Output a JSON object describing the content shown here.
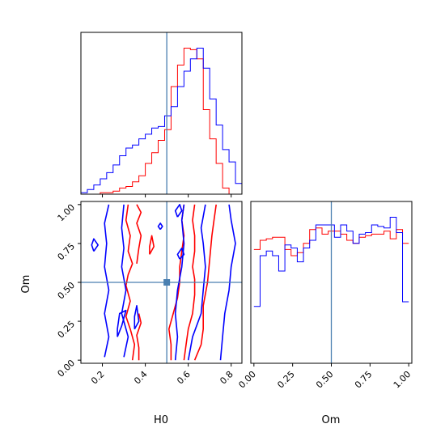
{
  "chart_data": {
    "type": "corner",
    "parameters": [
      "H0",
      "Om"
    ],
    "truth": {
      "H0": 0.5,
      "Om": 0.5
    },
    "colors": {
      "series_a": "#ff0000",
      "series_b": "#0000ff",
      "truth": "#4a7fb0"
    },
    "panels": [
      {
        "id": "H0-marginal",
        "type": "histogram",
        "xlim": [
          0.1,
          0.85
        ],
        "xticks": [
          0.2,
          0.4,
          0.6,
          0.8
        ],
        "bin_edges": [
          0.1,
          0.13,
          0.16,
          0.19,
          0.22,
          0.25,
          0.28,
          0.31,
          0.34,
          0.37,
          0.4,
          0.43,
          0.46,
          0.49,
          0.52,
          0.55,
          0.58,
          0.61,
          0.64,
          0.67,
          0.7,
          0.73,
          0.76,
          0.79,
          0.82,
          0.85
        ],
        "series": [
          {
            "color": "#ff0000",
            "values": [
              0,
              0,
              0,
              0.01,
              0.01,
              0.02,
              0.04,
              0.05,
              0.08,
              0.12,
              0.2,
              0.27,
              0.35,
              0.42,
              0.7,
              0.84,
              0.95,
              0.94,
              0.88,
              0.55,
              0.36,
              0.2,
              0.04,
              0,
              0
            ]
          },
          {
            "color": "#0000ff",
            "values": [
              0.01,
              0.03,
              0.06,
              0.1,
              0.14,
              0.19,
              0.25,
              0.3,
              0.32,
              0.36,
              0.39,
              0.43,
              0.44,
              0.51,
              0.57,
              0.7,
              0.8,
              0.88,
              0.95,
              0.82,
              0.62,
              0.45,
              0.29,
              0.21,
              0.07
            ]
          }
        ]
      },
      {
        "id": "Om-marginal",
        "type": "histogram",
        "xlim": [
          -0.02,
          1.02
        ],
        "xticks": [
          0.0,
          0.25,
          0.5,
          0.75,
          1.0
        ],
        "xticklabels": [
          "0.00",
          "0.25",
          "0.50",
          "0.75",
          "1.00"
        ],
        "bin_edges": [
          0.0,
          0.04,
          0.08,
          0.12,
          0.16,
          0.2,
          0.24,
          0.28,
          0.32,
          0.36,
          0.4,
          0.44,
          0.48,
          0.52,
          0.56,
          0.6,
          0.64,
          0.68,
          0.72,
          0.76,
          0.8,
          0.84,
          0.88,
          0.92,
          0.96,
          1.0
        ],
        "series": [
          {
            "color": "#ff0000",
            "values": [
              0.74,
              0.8,
              0.81,
              0.82,
              0.82,
              0.74,
              0.7,
              0.72,
              0.78,
              0.87,
              0.88,
              0.84,
              0.86,
              0.86,
              0.84,
              0.8,
              0.78,
              0.82,
              0.83,
              0.84,
              0.84,
              0.86,
              0.81,
              0.87,
              0.78
            ]
          },
          {
            "color": "#0000ff",
            "values": [
              0.37,
              0.7,
              0.73,
              0.7,
              0.6,
              0.77,
              0.75,
              0.66,
              0.75,
              0.8,
              0.9,
              0.9,
              0.9,
              0.82,
              0.9,
              0.86,
              0.78,
              0.84,
              0.85,
              0.9,
              0.89,
              0.88,
              0.95,
              0.85,
              0.4
            ]
          }
        ]
      },
      {
        "id": "H0-Om-joint",
        "type": "contour",
        "xlim": [
          0.1,
          0.85
        ],
        "ylim": [
          -0.02,
          1.02
        ],
        "xticks": [
          0.2,
          0.4,
          0.6,
          0.8
        ],
        "yticks": [
          0.0,
          0.25,
          0.5,
          0.75,
          1.0
        ],
        "yticklabels": [
          "0.00",
          "0.25",
          "0.50",
          "0.75",
          "1.00"
        ],
        "series": [
          {
            "color": "#ff0000",
            "contours": [
              [
                [
                  0.34,
                  0.0
                ],
                [
                  0.35,
                  0.1
                ],
                [
                  0.33,
                  0.2
                ],
                [
                  0.31,
                  0.28
                ],
                [
                  0.33,
                  0.38
                ],
                [
                  0.31,
                  0.48
                ],
                [
                  0.32,
                  0.55
                ],
                [
                  0.34,
                  0.62
                ],
                [
                  0.32,
                  0.7
                ],
                [
                  0.33,
                  0.8
                ],
                [
                  0.31,
                  0.9
                ],
                [
                  0.32,
                  1.0
                ]
              ],
              [
                [
                  0.37,
                  0.0
                ],
                [
                  0.37,
                  0.08
                ],
                [
                  0.36,
                  0.16
                ],
                [
                  0.38,
                  0.24
                ],
                [
                  0.37,
                  0.3
                ]
              ],
              [
                [
                  0.36,
                  0.62
                ],
                [
                  0.37,
                  0.72
                ],
                [
                  0.38,
                  0.8
                ],
                [
                  0.36,
                  0.88
                ],
                [
                  0.38,
                  0.95
                ],
                [
                  0.36,
                  1.0
                ]
              ],
              [
                [
                  0.52,
                  0.0
                ],
                [
                  0.52,
                  0.1
                ],
                [
                  0.51,
                  0.2
                ],
                [
                  0.53,
                  0.3
                ],
                [
                  0.55,
                  0.4
                ],
                [
                  0.56,
                  0.5
                ],
                [
                  0.56,
                  0.6
                ],
                [
                  0.57,
                  0.7
                ],
                [
                  0.58,
                  0.8
                ],
                [
                  0.57,
                  0.9
                ],
                [
                  0.58,
                  1.0
                ]
              ],
              [
                [
                  0.58,
                  0.0
                ],
                [
                  0.59,
                  0.1
                ],
                [
                  0.6,
                  0.2
                ],
                [
                  0.62,
                  0.3
                ],
                [
                  0.63,
                  0.42
                ],
                [
                  0.63,
                  0.52
                ],
                [
                  0.62,
                  0.6
                ],
                [
                  0.63,
                  0.7
                ],
                [
                  0.63,
                  0.8
                ],
                [
                  0.62,
                  0.9
                ],
                [
                  0.63,
                  1.0
                ]
              ],
              [
                [
                  0.63,
                  0.0
                ],
                [
                  0.66,
                  0.1
                ],
                [
                  0.67,
                  0.2
                ],
                [
                  0.67,
                  0.35
                ],
                [
                  0.69,
                  0.5
                ],
                [
                  0.7,
                  0.65
                ],
                [
                  0.71,
                  0.8
                ],
                [
                  0.72,
                  0.9
                ],
                [
                  0.73,
                  1.0
                ]
              ],
              [
                [
                  0.42,
                  0.68
                ],
                [
                  0.44,
                  0.73
                ],
                [
                  0.43,
                  0.8
                ],
                [
                  0.42,
                  0.73
                ],
                [
                  0.42,
                  0.68
                ]
              ]
            ]
          },
          {
            "color": "#0000ff",
            "contours": [
              [
                [
                  0.21,
                  0.02
                ],
                [
                  0.23,
                  0.15
                ],
                [
                  0.21,
                  0.3
                ],
                [
                  0.23,
                  0.45
                ],
                [
                  0.21,
                  0.6
                ],
                [
                  0.22,
                  0.75
                ],
                [
                  0.21,
                  0.88
                ],
                [
                  0.23,
                  1.0
                ]
              ],
              [
                [
                  0.3,
                  0.02
                ],
                [
                  0.32,
                  0.15
                ],
                [
                  0.29,
                  0.3
                ],
                [
                  0.31,
                  0.45
                ],
                [
                  0.29,
                  0.6
                ],
                [
                  0.3,
                  0.72
                ],
                [
                  0.29,
                  0.85
                ],
                [
                  0.3,
                  1.0
                ]
              ],
              [
                [
                  0.27,
                  0.15
                ],
                [
                  0.29,
                  0.22
                ],
                [
                  0.31,
                  0.32
                ],
                [
                  0.28,
                  0.3
                ],
                [
                  0.27,
                  0.2
                ],
                [
                  0.27,
                  0.15
                ]
              ],
              [
                [
                  0.35,
                  0.2
                ],
                [
                  0.37,
                  0.25
                ],
                [
                  0.36,
                  0.35
                ],
                [
                  0.35,
                  0.28
                ],
                [
                  0.35,
                  0.2
                ]
              ],
              [
                [
                  0.16,
                  0.7
                ],
                [
                  0.18,
                  0.74
                ],
                [
                  0.16,
                  0.78
                ],
                [
                  0.15,
                  0.74
                ],
                [
                  0.16,
                  0.7
                ]
              ],
              [
                [
                  0.54,
                  0.0
                ],
                [
                  0.55,
                  0.15
                ],
                [
                  0.54,
                  0.3
                ],
                [
                  0.55,
                  0.45
                ],
                [
                  0.57,
                  0.6
                ],
                [
                  0.58,
                  0.75
                ],
                [
                  0.57,
                  0.9
                ],
                [
                  0.58,
                  1.0
                ]
              ],
              [
                [
                  0.6,
                  0.0
                ],
                [
                  0.62,
                  0.15
                ],
                [
                  0.66,
                  0.3
                ],
                [
                  0.67,
                  0.45
                ],
                [
                  0.68,
                  0.6
                ],
                [
                  0.67,
                  0.75
                ],
                [
                  0.66,
                  0.85
                ],
                [
                  0.68,
                  1.0
                ]
              ],
              [
                [
                  0.75,
                  0.0
                ],
                [
                  0.76,
                  0.15
                ],
                [
                  0.77,
                  0.3
                ],
                [
                  0.79,
                  0.45
                ],
                [
                  0.8,
                  0.6
                ],
                [
                  0.82,
                  0.75
                ],
                [
                  0.8,
                  0.9
                ],
                [
                  0.79,
                  1.0
                ]
              ],
              [
                [
                  0.56,
                  0.65
                ],
                [
                  0.58,
                  0.68
                ],
                [
                  0.57,
                  0.72
                ],
                [
                  0.55,
                  0.68
                ],
                [
                  0.56,
                  0.65
                ]
              ],
              [
                [
                  0.55,
                  0.92
                ],
                [
                  0.57,
                  0.96
                ],
                [
                  0.56,
                  1.0
                ],
                [
                  0.54,
                  0.96
                ],
                [
                  0.55,
                  0.92
                ]
              ],
              [
                [
                  0.47,
                  0.84
                ],
                [
                  0.48,
                  0.86
                ],
                [
                  0.47,
                  0.88
                ],
                [
                  0.46,
                  0.86
                ],
                [
                  0.47,
                  0.84
                ]
              ]
            ]
          }
        ]
      }
    ]
  }
}
